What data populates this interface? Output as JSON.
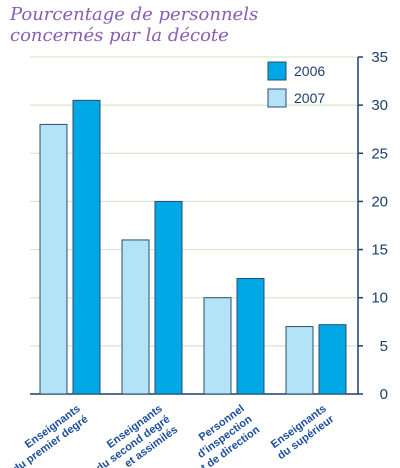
{
  "chart_data": {
    "type": "bar",
    "title": "Pourcentage de personnels concernés par la décote",
    "categories": [
      [
        "Enseignants",
        "du premier degré"
      ],
      [
        "Enseignants",
        "du second degré",
        "et assimilés"
      ],
      [
        "Personnel",
        "d'inspection",
        "et de direction"
      ],
      [
        "Enseignants",
        "du supérieur"
      ]
    ],
    "series": [
      {
        "name": "2007",
        "values": [
          28,
          16,
          10,
          7
        ],
        "color": "#b3e3f7",
        "stroke": "#2c4d6b"
      },
      {
        "name": "2006",
        "values": [
          30.5,
          20,
          12,
          7.2
        ],
        "color": "#00a8e6",
        "stroke": "#2c4d6b"
      }
    ],
    "legend": {
      "position": "top-right",
      "order": [
        "2006",
        "2007"
      ]
    },
    "ylim": [
      0,
      35
    ],
    "yticks": [
      0,
      5,
      10,
      15,
      20,
      25,
      30,
      35
    ],
    "y_axis_side": "right",
    "grid": true,
    "colors": {
      "grid": "#d6e9c9",
      "axis": "#1f3f6b",
      "title": "#8a5db5",
      "category_label": "#1d4f9c"
    }
  }
}
